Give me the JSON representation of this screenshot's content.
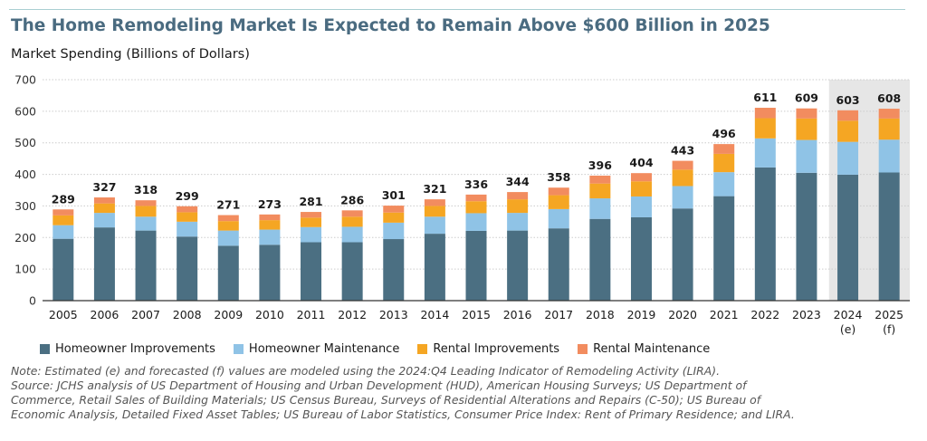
{
  "title": "The Home Remodeling Market Is Expected to Remain Above $600 Billion in 2025",
  "subtitle": "Market Spending (Billions of Dollars)",
  "note_lines": [
    "Note: Estimated (e) and forecasted (f) values are modeled using the 2024:Q4 Leading Indicator of Remodeling Activity (LIRA).",
    "Source: JCHS analysis of US Department of Housing and Urban Development (HUD), American Housing Surveys; US Department of",
    "Commerce, Retail Sales of Building Materials; US Census Bureau, Surveys of Residential Alterations and Repairs (C-50); US Bureau of",
    "Economic Analysis, Detailed Fixed Asset Tables; US Bureau of Labor Statistics, Consumer Price Index: Rent of Primary Residence; and LIRA."
  ],
  "colors": {
    "title": "#4a6b80",
    "shade": "#e6e6e6",
    "grid": "#cccccc",
    "axis": "#333333"
  },
  "chart_data": {
    "type": "bar",
    "stacked": true,
    "categories": [
      "2005",
      "2006",
      "2007",
      "2008",
      "2009",
      "2010",
      "2011",
      "2012",
      "2013",
      "2014",
      "2015",
      "2016",
      "2017",
      "2018",
      "2019",
      "2020",
      "2021",
      "2022",
      "2023",
      "2024",
      "2025"
    ],
    "category_sublabels": [
      "",
      "",
      "",
      "",
      "",
      "",
      "",
      "",
      "",
      "",
      "",
      "",
      "",
      "",
      "",
      "",
      "",
      "",
      "",
      "(e)",
      "(f)"
    ],
    "shaded_categories": [
      "2024",
      "2025"
    ],
    "ylim": [
      0,
      700
    ],
    "yticks": [
      0,
      100,
      200,
      300,
      400,
      500,
      600,
      700
    ],
    "grid": true,
    "legend_position": "bottom",
    "totals": [
      289,
      327,
      318,
      299,
      271,
      273,
      281,
      286,
      301,
      321,
      336,
      344,
      358,
      396,
      404,
      443,
      496,
      611,
      609,
      603,
      608
    ],
    "series": [
      {
        "name": "Homeowner Improvements",
        "color": "#4b6f82",
        "values": [
          196,
          232,
          222,
          203,
          174,
          177,
          185,
          185,
          195,
          212,
          221,
          222,
          229,
          259,
          264,
          292,
          331,
          422,
          405,
          399,
          406
        ]
      },
      {
        "name": "Homeowner Maintenance",
        "color": "#8fc3e6",
        "values": [
          43,
          46,
          44,
          47,
          48,
          48,
          48,
          49,
          52,
          54,
          56,
          56,
          61,
          65,
          66,
          71,
          76,
          92,
          104,
          104,
          104
        ]
      },
      {
        "name": "Rental Improvements",
        "color": "#f5a623",
        "values": [
          31,
          30,
          34,
          30,
          30,
          30,
          30,
          32,
          32,
          34,
          38,
          43,
          44,
          47,
          48,
          52,
          58,
          64,
          68,
          67,
          67
        ]
      },
      {
        "name": "Rental Maintenance",
        "color": "#f28c5f",
        "values": [
          19,
          19,
          18,
          19,
          19,
          18,
          18,
          20,
          22,
          21,
          21,
          23,
          24,
          25,
          26,
          28,
          31,
          33,
          32,
          33,
          31
        ]
      }
    ]
  }
}
